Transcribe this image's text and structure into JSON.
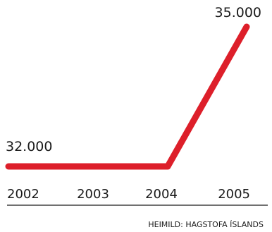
{
  "chart_data": {
    "type": "line",
    "categories": [
      "2002",
      "2003",
      "2004",
      "2005"
    ],
    "series": [
      {
        "values": [
          32000,
          32000,
          32000,
          35000
        ]
      }
    ],
    "data_labels": [
      "32.000",
      "35.000"
    ],
    "ylim": [
      32000,
      35000
    ],
    "grid": false,
    "legend": "none",
    "source": "HEIMILD: HAGSTOFA ÍSLANDS",
    "colors": {
      "line": "#dd1f2a",
      "axis": "#1a1a1a",
      "text": "#1a1a1a"
    }
  }
}
